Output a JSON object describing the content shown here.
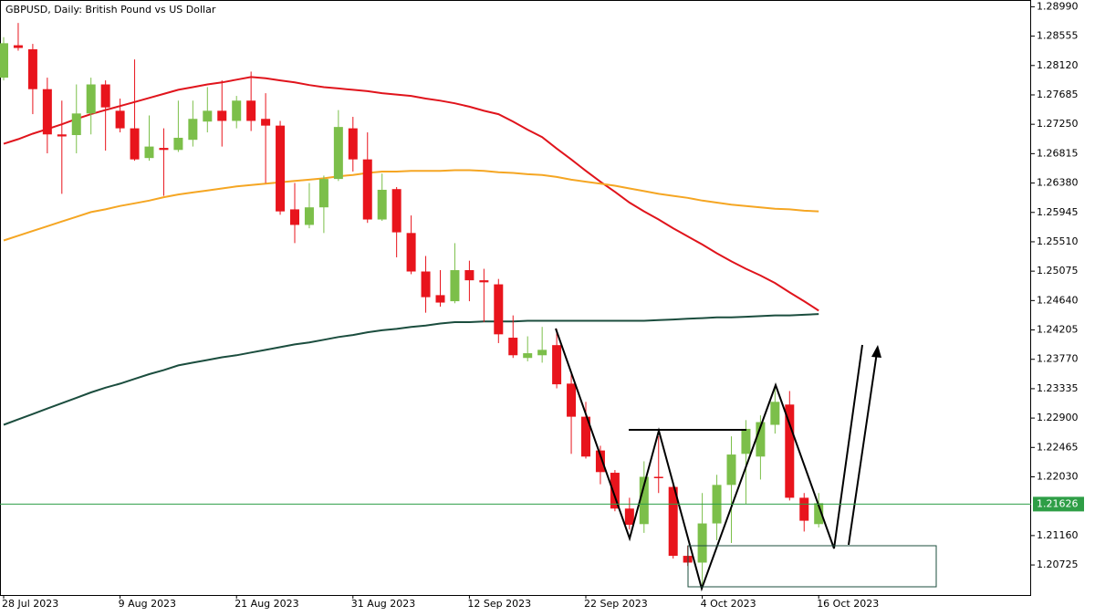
{
  "chart_data": {
    "type": "candlestick",
    "title": "GBPUSD, Daily:  British Pound vs US Dollar",
    "categories": [
      "28 Jul 2023",
      null,
      null,
      null,
      null,
      null,
      null,
      null,
      "9 Aug 2023",
      null,
      null,
      null,
      null,
      null,
      null,
      null,
      "21 Aug 2023",
      null,
      null,
      null,
      null,
      null,
      null,
      null,
      "31 Aug 2023",
      null,
      null,
      null,
      null,
      null,
      null,
      null,
      "12 Sep 2023",
      null,
      null,
      null,
      null,
      null,
      null,
      null,
      "22 Sep 2023",
      null,
      null,
      null,
      null,
      null,
      null,
      null,
      "4 Oct 2023",
      null,
      null,
      null,
      null,
      null,
      null,
      null,
      "16 Oct 2023"
    ],
    "open": [
      1.2794,
      1.2842,
      1.2836,
      1.2777,
      1.271,
      1.2709,
      1.2741,
      1.2784,
      1.2745,
      1.2719,
      1.2675,
      1.269,
      1.2687,
      1.2702,
      1.2729,
      1.2745,
      1.273,
      1.276,
      1.2733,
      1.2723,
      1.2599,
      1.2576,
      1.2602,
      1.2644,
      1.2719,
      1.2673,
      1.2584,
      1.2629,
      1.2564,
      1.2507,
      1.2472,
      1.2463,
      1.2509,
      1.2494,
      1.2488,
      1.2409,
      1.2379,
      1.2383,
      1.2398,
      1.2341,
      1.2292,
      1.2242,
      1.2209,
      1.2156,
      1.2133,
      1.2203,
      1.2188,
      1.2086,
      1.2076,
      1.2134,
      1.2191,
      1.2237,
      1.2233,
      1.228,
      1.231,
      1.2172,
      1.2133
    ],
    "high": [
      1.2854,
      1.2875,
      1.2844,
      1.2794,
      1.276,
      1.2784,
      1.2794,
      1.279,
      1.2763,
      1.2821,
      1.2738,
      1.2719,
      1.276,
      1.276,
      1.278,
      1.279,
      1.2767,
      1.2803,
      1.2771,
      1.273,
      1.2638,
      1.2638,
      1.2649,
      1.2746,
      1.2736,
      1.2713,
      1.2652,
      1.2632,
      1.259,
      1.253,
      1.2509,
      1.2549,
      1.2523,
      1.2511,
      1.2496,
      1.2442,
      1.2411,
      1.2425,
      1.2422,
      1.2355,
      1.2314,
      1.2249,
      1.2213,
      1.2172,
      1.2226,
      1.2263,
      1.2193,
      1.2101,
      1.2179,
      1.2206,
      1.2263,
      1.2287,
      1.2294,
      1.2334,
      1.233,
      1.2179,
      1.2179
    ],
    "low": [
      1.279,
      1.2834,
      1.274,
      1.2682,
      1.2622,
      1.2682,
      1.271,
      1.2686,
      1.2713,
      1.2671,
      1.2671,
      1.2619,
      1.2684,
      1.2692,
      1.2713,
      1.2692,
      1.2719,
      1.2715,
      1.2638,
      1.2591,
      1.2549,
      1.2571,
      1.2564,
      1.2641,
      1.2655,
      1.2579,
      1.2582,
      1.2528,
      1.2503,
      1.2446,
      1.2455,
      1.246,
      1.2463,
      1.2432,
      1.2401,
      1.2379,
      1.2374,
      1.2372,
      1.2334,
      1.2237,
      1.223,
      1.2192,
      1.2152,
      1.2125,
      1.212,
      1.2179,
      1.2082,
      1.2071,
      1.2037,
      1.2109,
      1.2105,
      1.2163,
      1.2199,
      1.2267,
      1.2168,
      1.2122,
      1.2128
    ],
    "close": [
      1.2845,
      1.2838,
      1.2777,
      1.271,
      1.2707,
      1.2741,
      1.2784,
      1.275,
      1.2719,
      1.2673,
      1.2692,
      1.2687,
      1.2705,
      1.2733,
      1.2745,
      1.273,
      1.276,
      1.273,
      1.2723,
      1.2596,
      1.2576,
      1.2602,
      1.2644,
      1.2721,
      1.2673,
      1.2584,
      1.2628,
      1.2565,
      1.2507,
      1.2469,
      1.2461,
      1.2509,
      1.2494,
      1.2491,
      1.2414,
      1.2383,
      1.2386,
      1.2391,
      1.234,
      1.2292,
      1.2233,
      1.221,
      1.2156,
      1.2132,
      1.2203,
      1.2201,
      1.2086,
      1.2076,
      1.2134,
      1.2191,
      1.2236,
      1.2274,
      1.2284,
      1.2314,
      1.2172,
      1.2138,
      1.2164
    ],
    "up_color": "#7cbf4a",
    "down_color": "#e8141c",
    "overlays": [
      {
        "color": "#e0141c",
        "values": [
          1.2696,
          1.2703,
          1.2711,
          1.2718,
          1.2725,
          1.2733,
          1.274,
          1.2746,
          1.2752,
          1.2758,
          1.2764,
          1.277,
          1.2776,
          1.278,
          1.2784,
          1.2787,
          1.2791,
          1.2795,
          1.2793,
          1.279,
          1.2787,
          1.2783,
          1.278,
          1.2778,
          1.2776,
          1.2774,
          1.2771,
          1.2769,
          1.2767,
          1.2763,
          1.276,
          1.2756,
          1.2751,
          1.2745,
          1.274,
          1.2729,
          1.2717,
          1.2706,
          1.2689,
          1.2673,
          1.2656,
          1.264,
          1.2625,
          1.2609,
          1.2596,
          1.2584,
          1.2571,
          1.2559,
          1.2547,
          1.2534,
          1.2522,
          1.2511,
          1.2501,
          1.249,
          1.2476,
          1.2463,
          1.2449
        ]
      },
      {
        "color": "#f5a623",
        "values": [
          1.2553,
          1.256,
          1.2567,
          1.2574,
          1.2581,
          1.2588,
          1.2595,
          1.2599,
          1.2604,
          1.2608,
          1.2612,
          1.2617,
          1.2621,
          1.2624,
          1.2627,
          1.263,
          1.2633,
          1.2635,
          1.2637,
          1.2639,
          1.2641,
          1.2643,
          1.2645,
          1.2648,
          1.265,
          1.2653,
          1.2655,
          1.2655,
          1.2656,
          1.2656,
          1.2656,
          1.2657,
          1.2657,
          1.2656,
          1.2654,
          1.2653,
          1.2651,
          1.265,
          1.2647,
          1.2643,
          1.264,
          1.2637,
          1.2634,
          1.263,
          1.2626,
          1.2622,
          1.2619,
          1.2616,
          1.2612,
          1.2609,
          1.2606,
          1.2604,
          1.2602,
          1.26,
          1.2599,
          1.2597,
          1.2596
        ]
      },
      {
        "color": "#1b4d3e",
        "values": [
          1.228,
          1.2288,
          1.2296,
          1.2304,
          1.2312,
          1.232,
          1.2328,
          1.2335,
          1.2341,
          1.2348,
          1.2355,
          1.2361,
          1.2368,
          1.2372,
          1.2376,
          1.238,
          1.2383,
          1.2387,
          1.2391,
          1.2395,
          1.2399,
          1.2402,
          1.2406,
          1.241,
          1.2413,
          1.2417,
          1.242,
          1.2422,
          1.2425,
          1.2427,
          1.243,
          1.2432,
          1.2432,
          1.2433,
          1.2433,
          1.2433,
          1.2434,
          1.2434,
          1.2434,
          1.2434,
          1.2434,
          1.2434,
          1.2434,
          1.2434,
          1.2434,
          1.2435,
          1.2436,
          1.2437,
          1.2438,
          1.2439,
          1.2439,
          1.244,
          1.2441,
          1.2442,
          1.2442,
          1.2443,
          1.2444
        ]
      }
    ],
    "current_price": 1.21626,
    "current_price_color": "#2e9e46",
    "ylim": [
      1.2028,
      1.2909
    ],
    "yticks": [
      {
        "value": 1.2899,
        "label": "1.28990"
      },
      1.28555,
      {
        "value": 1.2812,
        "label": "1.28120"
      },
      1.27685,
      {
        "value": 1.2725,
        "label": "1.27250"
      },
      1.26815,
      {
        "value": 1.2638,
        "label": "1.26380"
      },
      1.25945,
      {
        "value": 1.2551,
        "label": "1.25510"
      },
      1.25075,
      {
        "value": 1.2464,
        "label": "1.24640"
      },
      1.24205,
      {
        "value": 1.2377,
        "label": "1.23770"
      },
      1.23335,
      {
        "value": 1.229,
        "label": "1.22900"
      },
      1.22465,
      {
        "value": 1.2203,
        "label": "1.22030"
      },
      {
        "value": 1.2116,
        "label": "1.21160"
      },
      1.20725
    ]
  }
}
